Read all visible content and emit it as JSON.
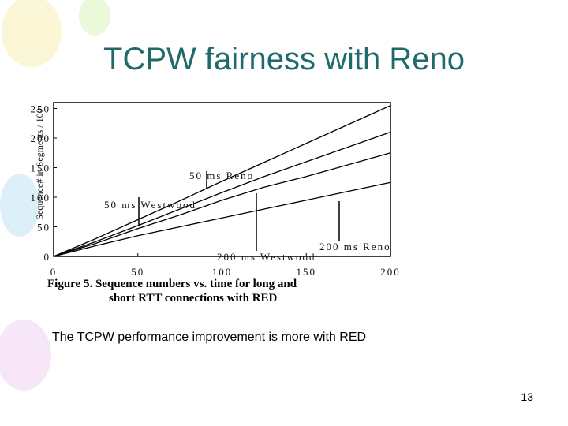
{
  "title": "TCPW fairness with Reno",
  "caption": "The TCPW performance improvement is more with RED",
  "page_number": "13",
  "chart_data": {
    "type": "line",
    "figure_caption": [
      "Figure 5. Sequence numbers vs. time for long and",
      "short RTT connections with RED"
    ],
    "y_label": "Sequence# in Segments / 100",
    "x": [
      0,
      25,
      50,
      75,
      100,
      125,
      150,
      175,
      200
    ],
    "series": [
      {
        "name": "50 ms Reno",
        "color": "#000000",
        "values": [
          0,
          30,
          62,
          94,
          127,
          159,
          191,
          223,
          255
        ]
      },
      {
        "name": "50 ms Westwood",
        "color": "#000000",
        "values": [
          0,
          25,
          52,
          80,
          108,
          135,
          160,
          185,
          210
        ]
      },
      {
        "name": "200 ms Westwood",
        "color": "#000000",
        "values": [
          0,
          22,
          47,
          70,
          95,
          117,
          135,
          155,
          175
        ]
      },
      {
        "name": "200 ms Reno",
        "color": "#000000",
        "values": [
          0,
          18,
          35,
          50,
          65,
          80,
          95,
          110,
          125
        ]
      }
    ],
    "xlim": [
      0,
      200
    ],
    "xticks": [
      0,
      50,
      100,
      150,
      200
    ],
    "ylim": [
      0,
      260
    ],
    "yticks": [
      0,
      50,
      100,
      150,
      200,
      250
    ]
  }
}
